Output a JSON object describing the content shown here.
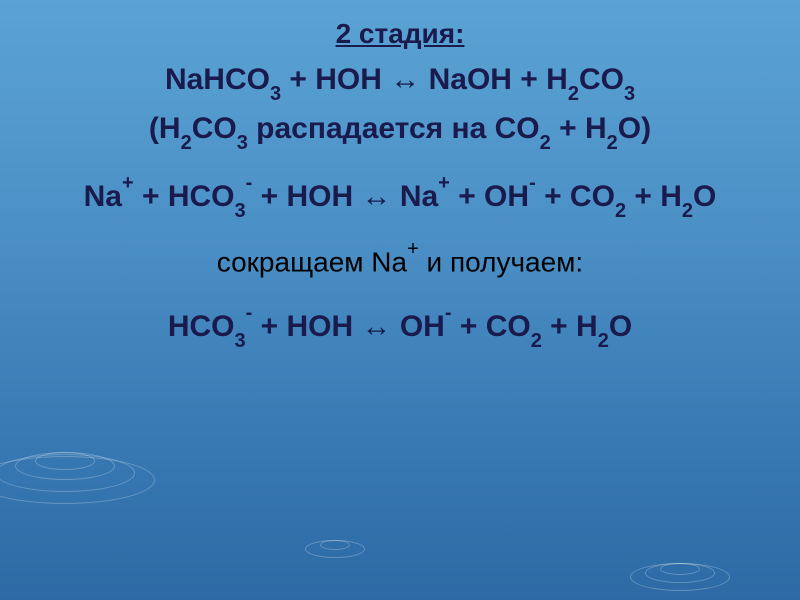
{
  "stage_title": "2 стадия:",
  "eq1_part1": "NaHCO",
  "eq1_part2": " + HOH ↔ NaOH + H",
  "eq1_part3": "CO",
  "eq1_part4": "(H",
  "eq1_part5": "CO",
  "eq1_part6": " распадается на CO",
  "eq1_part7": " + H",
  "eq1_part8": "O)",
  "eq2_part1": "Na",
  "eq2_part2": " + HCO",
  "eq2_part3": " + HOH ↔ Na",
  "eq2_part4": " + OH",
  "eq2_part5": " + CO",
  "eq2_part6": " + H",
  "eq2_part7": "O",
  "comment_part1": "сокращаем Na",
  "comment_part2": " и получаем:",
  "eq3_part1": "HCO",
  "eq3_part2": " + HOH ↔ OH",
  "eq3_part3": " + CO",
  "eq3_part4": " + H",
  "eq3_part5": "O",
  "sub3": "3",
  "sub2": "2",
  "plus": "+",
  "minus": "-",
  "colors": {
    "background_top": "#5ba3d4",
    "background_bottom": "#2d6aa5",
    "title_color": "#1a1a4d",
    "equation_color": "#1a1a4d",
    "comment_color": "#000000",
    "ripple_color": "rgba(255,255,255,0.25)"
  },
  "typography": {
    "title_fontsize": 28,
    "equation_fontsize": 30,
    "comment_fontsize": 28,
    "sub_fontsize": 20,
    "sup_fontsize": 20,
    "font_family": "Arial"
  }
}
